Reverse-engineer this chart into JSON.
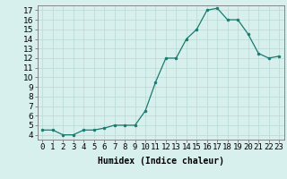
{
  "x": [
    0,
    1,
    2,
    3,
    4,
    5,
    6,
    7,
    8,
    9,
    10,
    11,
    12,
    13,
    14,
    15,
    16,
    17,
    18,
    19,
    20,
    21,
    22,
    23
  ],
  "y": [
    4.5,
    4.5,
    4.0,
    4.0,
    4.5,
    4.5,
    4.7,
    5.0,
    5.0,
    5.0,
    6.5,
    9.5,
    12.0,
    12.0,
    14.0,
    15.0,
    17.0,
    17.2,
    16.0,
    16.0,
    14.5,
    12.5,
    12.0,
    12.2
  ],
  "line_color": "#1a7a6e",
  "marker": "o",
  "marker_size": 2.0,
  "bg_color": "#d7f0ee",
  "grid_color": "#b8d8d4",
  "xlabel": "Humidex (Indice chaleur)",
  "xlim": [
    -0.5,
    23.5
  ],
  "ylim": [
    3.5,
    17.5
  ],
  "yticks": [
    4,
    5,
    6,
    7,
    8,
    9,
    10,
    11,
    12,
    13,
    14,
    15,
    16,
    17
  ],
  "xtick_labels": [
    "0",
    "1",
    "2",
    "3",
    "4",
    "5",
    "6",
    "7",
    "8",
    "9",
    "10",
    "11",
    "12",
    "13",
    "14",
    "15",
    "16",
    "17",
    "18",
    "19",
    "20",
    "21",
    "22",
    "23"
  ],
  "label_fontsize": 7,
  "tick_fontsize": 6.5
}
